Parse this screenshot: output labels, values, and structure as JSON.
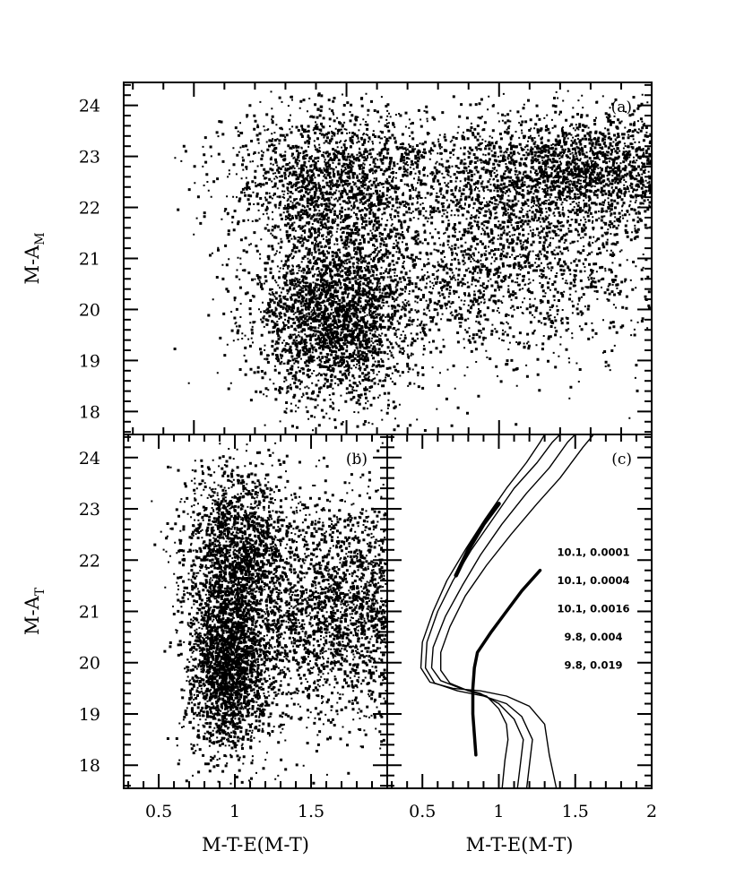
{
  "chart_data": [
    {
      "panel": "a",
      "type": "scatter",
      "panel_label": "(a)",
      "xlabel": "",
      "ylabel": "M-A_M",
      "xlim": [
        0.27,
        2.0
      ],
      "ylim": [
        24.45,
        17.55
      ],
      "x_ticks": [],
      "y_ticks": [
        18,
        19,
        20,
        21,
        22,
        23,
        24
      ],
      "density_clumps": [
        {
          "x": 0.95,
          "y": 19.9,
          "sx": 0.13,
          "sy": 0.9,
          "w": 0.3
        },
        {
          "x": 0.95,
          "y": 22.6,
          "sx": 0.17,
          "sy": 0.75,
          "w": 0.2
        },
        {
          "x": 1.45,
          "y": 20.9,
          "sx": 0.3,
          "sy": 1.0,
          "w": 0.22
        },
        {
          "x": 1.75,
          "y": 22.7,
          "sx": 0.25,
          "sy": 0.6,
          "w": 0.28
        }
      ]
    },
    {
      "panel": "b",
      "type": "scatter",
      "panel_label": "(b)",
      "xlabel": "M-T-E(M-T)",
      "ylabel": "M-A_T",
      "xlim": [
        0.27,
        2.0
      ],
      "ylim": [
        24.45,
        17.55
      ],
      "x_ticks": [
        0.5,
        1,
        1.5
      ],
      "y_ticks": [
        18,
        19,
        20,
        21,
        22,
        23,
        24
      ],
      "density_clumps": [
        {
          "x": 0.95,
          "y": 20.0,
          "sx": 0.13,
          "sy": 0.9,
          "w": 0.35
        },
        {
          "x": 1.0,
          "y": 22.3,
          "sx": 0.18,
          "sy": 0.8,
          "w": 0.25
        },
        {
          "x": 1.45,
          "y": 20.9,
          "sx": 0.3,
          "sy": 1.1,
          "w": 0.25
        },
        {
          "x": 1.85,
          "y": 21.3,
          "sx": 0.2,
          "sy": 1.0,
          "w": 0.15
        }
      ]
    },
    {
      "panel": "c",
      "type": "line",
      "panel_label": "(c)",
      "xlabel": "M-T-E(M-T)",
      "ylabel": "",
      "xlim": [
        0.27,
        2.0
      ],
      "ylim": [
        24.45,
        17.55
      ],
      "x_ticks": [
        0.5,
        1,
        1.5,
        2
      ],
      "y_ticks": [
        18,
        19,
        20,
        21,
        22,
        23,
        24
      ],
      "isochrone_labels": [
        "9.8, 0.019",
        "9.8, 0.004",
        "10.1, 0.0016",
        "10.1, 0.0004",
        "10.1, 0.0001"
      ],
      "series": [
        {
          "label": "9.8, 0.019",
          "points": [
            [
              0.85,
              18.2
            ],
            [
              0.84,
              18.6
            ],
            [
              0.83,
              19.0
            ],
            [
              0.83,
              19.5
            ],
            [
              0.84,
              19.9
            ],
            [
              0.86,
              20.2
            ],
            [
              0.95,
              20.6
            ],
            [
              1.05,
              21.0
            ],
            [
              1.15,
              21.4
            ],
            [
              1.27,
              21.8
            ]
          ],
          "width": 3.5
        },
        {
          "label": "9.8, 0.004",
          "points": [
            [
              1.02,
              17.5
            ],
            [
              1.04,
              18.1
            ],
            [
              1.06,
              18.5
            ],
            [
              1.05,
              18.8
            ],
            [
              1.0,
              19.1
            ],
            [
              0.92,
              19.35
            ],
            [
              0.8,
              19.45
            ],
            [
              0.68,
              19.6
            ],
            [
              0.62,
              19.85
            ],
            [
              0.62,
              20.2
            ],
            [
              0.68,
              20.7
            ],
            [
              0.78,
              21.3
            ],
            [
              0.92,
              21.9
            ],
            [
              1.08,
              22.5
            ],
            [
              1.25,
              23.1
            ],
            [
              1.4,
              23.6
            ],
            [
              1.55,
              24.2
            ],
            [
              1.62,
              24.45
            ]
          ],
          "width": 1.4
        },
        {
          "label": "10.1, 0.0016",
          "points": [
            [
              1.12,
              17.5
            ],
            [
              1.14,
              18.0
            ],
            [
              1.16,
              18.5
            ],
            [
              1.1,
              18.9
            ],
            [
              1.0,
              19.2
            ],
            [
              0.88,
              19.4
            ],
            [
              0.75,
              19.5
            ],
            [
              0.62,
              19.65
            ],
            [
              0.56,
              19.9
            ],
            [
              0.57,
              20.3
            ],
            [
              0.65,
              20.9
            ],
            [
              0.76,
              21.5
            ],
            [
              0.88,
              22.1
            ],
            [
              1.02,
              22.7
            ],
            [
              1.18,
              23.3
            ],
            [
              1.33,
              23.8
            ],
            [
              1.45,
              24.3
            ],
            [
              1.5,
              24.45
            ]
          ],
          "width": 1.4
        },
        {
          "label": "10.1, 0.0004",
          "points": [
            [
              1.18,
              17.5
            ],
            [
              1.2,
              18.0
            ],
            [
              1.22,
              18.5
            ],
            [
              1.15,
              18.95
            ],
            [
              1.05,
              19.2
            ],
            [
              0.9,
              19.35
            ],
            [
              0.73,
              19.45
            ],
            [
              0.58,
              19.6
            ],
            [
              0.52,
              19.9
            ],
            [
              0.53,
              20.4
            ],
            [
              0.6,
              21.0
            ],
            [
              0.7,
              21.6
            ],
            [
              0.82,
              22.2
            ],
            [
              0.96,
              22.8
            ],
            [
              1.1,
              23.4
            ],
            [
              1.25,
              23.9
            ],
            [
              1.35,
              24.3
            ],
            [
              1.4,
              24.45
            ]
          ],
          "width": 1.4
        },
        {
          "label": "10.1, 0.0001",
          "points": [
            [
              1.38,
              17.5
            ],
            [
              1.33,
              18.2
            ],
            [
              1.3,
              18.8
            ],
            [
              1.2,
              19.15
            ],
            [
              1.05,
              19.35
            ],
            [
              0.88,
              19.45
            ],
            [
              0.7,
              19.5
            ],
            [
              0.55,
              19.62
            ],
            [
              0.49,
              19.9
            ],
            [
              0.5,
              20.4
            ],
            [
              0.57,
              21.0
            ],
            [
              0.66,
              21.6
            ],
            [
              0.78,
              22.2
            ],
            [
              0.91,
              22.8
            ],
            [
              1.05,
              23.4
            ],
            [
              1.18,
              23.9
            ],
            [
              1.27,
              24.3
            ],
            [
              1.3,
              24.45
            ]
          ],
          "width": 1.4
        },
        {
          "label": "",
          "points": [
            [
              0.72,
              21.7
            ],
            [
              0.8,
              22.2
            ],
            [
              0.9,
              22.7
            ],
            [
              1.0,
              23.1
            ]
          ],
          "width": 4.5
        }
      ]
    }
  ]
}
